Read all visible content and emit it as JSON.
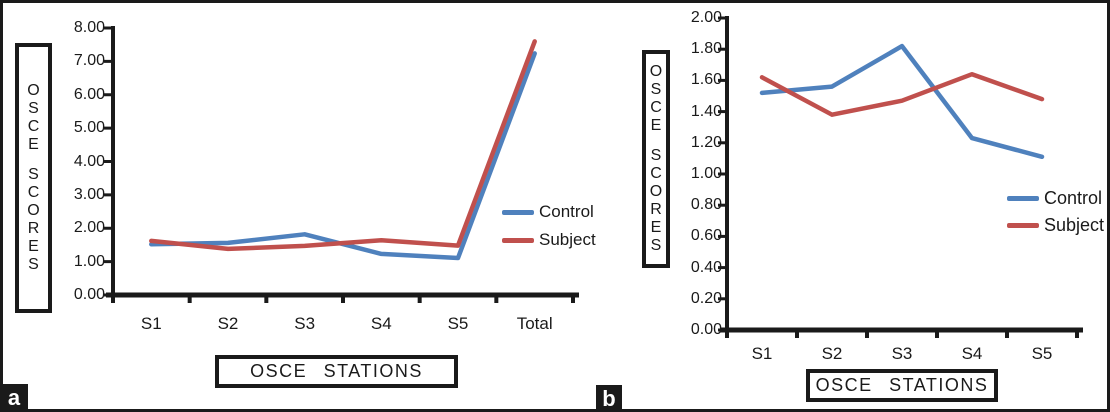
{
  "figure": {
    "background": "#ffffff",
    "border_color": "#1a1a1a",
    "text_color": "#1a1a1a"
  },
  "chart_data": [
    {
      "id": "a",
      "panel_label": "a",
      "type": "line",
      "title": "",
      "xlabel": "OSCE STATIONS",
      "ylabel": "OSCE SCORES",
      "categories": [
        "S1",
        "S2",
        "S3",
        "S4",
        "S5",
        "Total"
      ],
      "y_ticks": [
        "8.00",
        "7.00",
        "6.00",
        "5.00",
        "4.00",
        "3.00",
        "2.00",
        "1.00",
        "0.00"
      ],
      "ylim": [
        0,
        8
      ],
      "grid": false,
      "legend_position": "right-inside",
      "series": [
        {
          "name": "Control",
          "color": "#4F81BD",
          "values": [
            1.52,
            1.56,
            1.82,
            1.23,
            1.11,
            7.24
          ]
        },
        {
          "name": "Subject",
          "color": "#C0504D",
          "values": [
            1.62,
            1.38,
            1.47,
            1.64,
            1.48,
            7.6
          ]
        }
      ]
    },
    {
      "id": "b",
      "panel_label": "b",
      "type": "line",
      "title": "",
      "xlabel": "OSCE STATIONS",
      "ylabel": "OSCE SCORES",
      "categories": [
        "S1",
        "S2",
        "S3",
        "S4",
        "S5"
      ],
      "y_ticks": [
        "2.00",
        "1.80",
        "1.60",
        "1.40",
        "1.20",
        "1.00",
        "0.80",
        "0.60",
        "0.40",
        "0.20",
        "0.00"
      ],
      "ylim": [
        0,
        2
      ],
      "grid": false,
      "legend_position": "right-inside",
      "series": [
        {
          "name": "Control",
          "color": "#4F81BD",
          "values": [
            1.52,
            1.56,
            1.82,
            1.23,
            1.11
          ]
        },
        {
          "name": "Subject",
          "color": "#C0504D",
          "values": [
            1.62,
            1.38,
            1.47,
            1.64,
            1.48
          ]
        }
      ]
    }
  ]
}
